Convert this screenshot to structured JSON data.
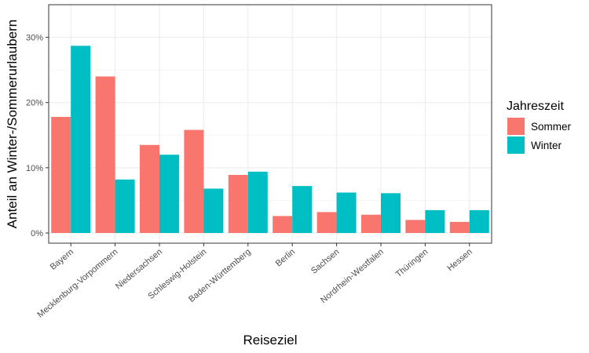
{
  "chart_data": {
    "type": "bar",
    "xlabel": "Reiseziel",
    "ylabel": "Anteil an Winter-/Sommerurlaubern",
    "ylim": [
      0,
      0.35
    ],
    "y_ticks": [
      0,
      0.1,
      0.2,
      0.3
    ],
    "y_tick_labels": [
      "0%",
      "10%",
      "20%",
      "30%"
    ],
    "grid": true,
    "legend": {
      "title": "Jahreszeit",
      "placement": "right"
    },
    "categories": [
      "Bayern",
      "Mecklenburg-Vorpommern",
      "Niedersachsen",
      "Schleswig-Holstein",
      "Baden-Württemberg",
      "Berlin",
      "Sachsen",
      "Nordrhein-Westfalen",
      "Thüringen",
      "Hessen"
    ],
    "series": [
      {
        "name": "Sommer",
        "color": "#F8766D",
        "values": [
          0.178,
          0.24,
          0.135,
          0.158,
          0.089,
          0.026,
          0.032,
          0.028,
          0.02,
          0.017
        ]
      },
      {
        "name": "Winter",
        "color": "#00BFC4",
        "values": [
          0.287,
          0.082,
          0.12,
          0.068,
          0.094,
          0.072,
          0.062,
          0.061,
          0.035,
          0.035
        ]
      }
    ]
  }
}
